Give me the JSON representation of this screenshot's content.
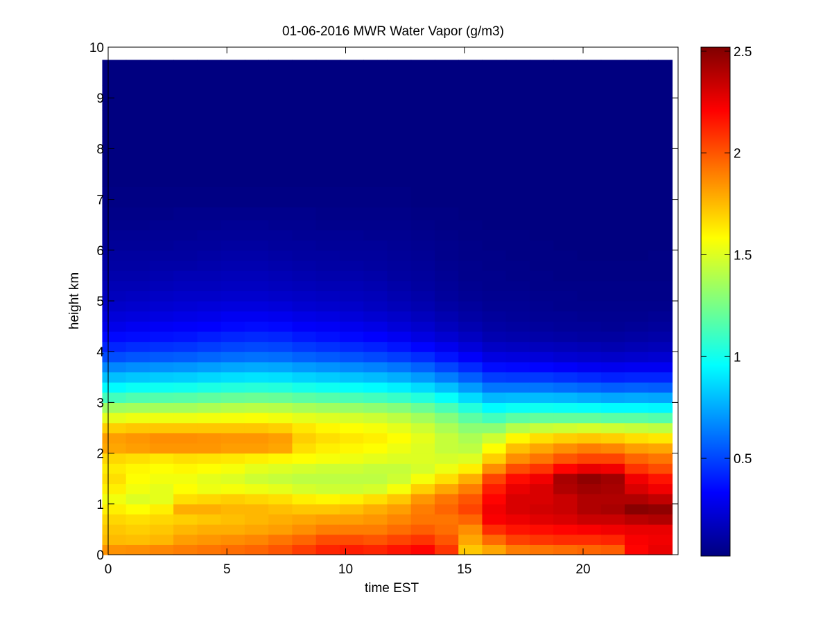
{
  "chart_data": {
    "type": "heatmap",
    "title": "01-06-2016 MWR Water Vapor (g/m3)",
    "xlabel": "time EST",
    "ylabel": "height km",
    "xlim": [
      0,
      24
    ],
    "ylim": [
      0,
      10
    ],
    "xticks": [
      0,
      5,
      10,
      15,
      20
    ],
    "yticks": [
      0,
      1,
      2,
      3,
      4,
      5,
      6,
      7,
      8,
      9,
      10
    ],
    "colorbar": {
      "colormap": "jet",
      "clim": [
        0.02,
        2.52
      ],
      "ticks": [
        0.5,
        1,
        1.5,
        2,
        2.5
      ]
    },
    "x": [
      0.25,
      1.25,
      2.25,
      3.25,
      4.25,
      5.25,
      6.25,
      7.25,
      8.25,
      9.25,
      10.25,
      11.25,
      12.25,
      13.25,
      14.25,
      15.25,
      16.25,
      17.25,
      18.25,
      19.25,
      20.25,
      21.25,
      22.25,
      23.25
    ],
    "y": [
      0.1,
      0.3,
      0.5,
      0.7,
      0.9,
      1.1,
      1.3,
      1.5,
      1.7,
      1.9,
      2.1,
      2.3,
      2.5,
      2.7,
      2.9,
      3.1,
      3.3,
      3.5,
      3.7,
      3.9,
      4.1,
      4.3,
      4.5,
      4.7,
      4.9,
      5.1,
      5.3,
      5.5,
      5.7,
      5.9,
      6.1,
      6.3,
      6.5,
      6.7,
      7.0,
      7.5,
      8.0,
      8.5,
      9.0,
      9.5
    ],
    "z_columns": [
      [
        1.85,
        1.75,
        1.72,
        1.68,
        1.62,
        1.55,
        1.62,
        1.66,
        1.63,
        1.68,
        1.8,
        1.82,
        1.7,
        1.52,
        1.35,
        1.12,
        0.95,
        0.8,
        0.66,
        0.52,
        0.42,
        0.35,
        0.28,
        0.24,
        0.2,
        0.17,
        0.15,
        0.13,
        0.11,
        0.1,
        0.08,
        0.07,
        0.05,
        0.04,
        0.03,
        0.02,
        0.02,
        0.02,
        0.02,
        0.02
      ],
      [
        1.86,
        1.74,
        1.7,
        1.66,
        1.58,
        1.5,
        1.55,
        1.58,
        1.6,
        1.66,
        1.82,
        1.84,
        1.72,
        1.54,
        1.36,
        1.15,
        0.98,
        0.82,
        0.68,
        0.54,
        0.44,
        0.36,
        0.3,
        0.25,
        0.21,
        0.18,
        0.15,
        0.13,
        0.11,
        0.1,
        0.08,
        0.07,
        0.05,
        0.04,
        0.03,
        0.02,
        0.02,
        0.02,
        0.02,
        0.02
      ],
      [
        1.88,
        1.76,
        1.72,
        1.68,
        1.62,
        1.52,
        1.52,
        1.55,
        1.58,
        1.64,
        1.84,
        1.86,
        1.72,
        1.54,
        1.36,
        1.16,
        0.99,
        0.83,
        0.69,
        0.55,
        0.45,
        0.37,
        0.31,
        0.26,
        0.22,
        0.19,
        0.16,
        0.14,
        0.12,
        0.1,
        0.08,
        0.07,
        0.06,
        0.04,
        0.03,
        0.02,
        0.02,
        0.02,
        0.02,
        0.02
      ],
      [
        1.9,
        1.82,
        1.76,
        1.7,
        1.78,
        1.66,
        1.58,
        1.55,
        1.6,
        1.66,
        1.84,
        1.86,
        1.72,
        1.54,
        1.36,
        1.17,
        1.0,
        0.84,
        0.7,
        0.56,
        0.46,
        0.38,
        0.32,
        0.27,
        0.23,
        0.2,
        0.17,
        0.15,
        0.12,
        0.1,
        0.09,
        0.07,
        0.06,
        0.05,
        0.03,
        0.02,
        0.02,
        0.02,
        0.02,
        0.02
      ],
      [
        1.92,
        1.84,
        1.78,
        1.72,
        1.78,
        1.68,
        1.54,
        1.52,
        1.58,
        1.65,
        1.84,
        1.85,
        1.72,
        1.55,
        1.38,
        1.19,
        1.02,
        0.86,
        0.72,
        0.58,
        0.48,
        0.4,
        0.33,
        0.28,
        0.24,
        0.2,
        0.17,
        0.15,
        0.13,
        0.11,
        0.09,
        0.08,
        0.06,
        0.05,
        0.03,
        0.02,
        0.02,
        0.02,
        0.02,
        0.02
      ],
      [
        1.94,
        1.86,
        1.78,
        1.74,
        1.76,
        1.7,
        1.56,
        1.5,
        1.56,
        1.64,
        1.82,
        1.84,
        1.72,
        1.56,
        1.4,
        1.21,
        1.04,
        0.88,
        0.74,
        0.6,
        0.5,
        0.42,
        0.35,
        0.3,
        0.25,
        0.21,
        0.18,
        0.16,
        0.14,
        0.12,
        0.1,
        0.08,
        0.07,
        0.05,
        0.03,
        0.02,
        0.02,
        0.02,
        0.02,
        0.02
      ],
      [
        1.96,
        1.88,
        1.8,
        1.76,
        1.76,
        1.68,
        1.54,
        1.46,
        1.52,
        1.62,
        1.82,
        1.84,
        1.72,
        1.57,
        1.41,
        1.22,
        1.05,
        0.89,
        0.75,
        0.61,
        0.51,
        0.43,
        0.36,
        0.3,
        0.25,
        0.21,
        0.18,
        0.16,
        0.14,
        0.12,
        0.1,
        0.08,
        0.07,
        0.05,
        0.03,
        0.02,
        0.02,
        0.02,
        0.02,
        0.02
      ],
      [
        2.0,
        1.92,
        1.82,
        1.78,
        1.74,
        1.66,
        1.52,
        1.44,
        1.5,
        1.6,
        1.8,
        1.82,
        1.7,
        1.55,
        1.4,
        1.21,
        1.04,
        0.88,
        0.74,
        0.6,
        0.5,
        0.42,
        0.35,
        0.29,
        0.24,
        0.2,
        0.17,
        0.15,
        0.13,
        0.11,
        0.09,
        0.08,
        0.06,
        0.05,
        0.03,
        0.02,
        0.02,
        0.02,
        0.02,
        0.02
      ],
      [
        2.06,
        1.96,
        1.86,
        1.8,
        1.72,
        1.62,
        1.48,
        1.42,
        1.48,
        1.58,
        1.66,
        1.7,
        1.64,
        1.52,
        1.37,
        1.18,
        1.01,
        0.85,
        0.71,
        0.57,
        0.47,
        0.39,
        0.32,
        0.27,
        0.22,
        0.19,
        0.16,
        0.14,
        0.12,
        0.1,
        0.09,
        0.07,
        0.06,
        0.05,
        0.03,
        0.02,
        0.02,
        0.02,
        0.02,
        0.02
      ],
      [
        2.12,
        2.02,
        1.9,
        1.82,
        1.72,
        1.6,
        1.46,
        1.42,
        1.46,
        1.56,
        1.62,
        1.66,
        1.6,
        1.5,
        1.35,
        1.16,
        0.99,
        0.83,
        0.69,
        0.55,
        0.45,
        0.37,
        0.31,
        0.26,
        0.21,
        0.18,
        0.15,
        0.13,
        0.11,
        0.1,
        0.08,
        0.07,
        0.05,
        0.04,
        0.03,
        0.02,
        0.02,
        0.02,
        0.02,
        0.02
      ],
      [
        2.14,
        2.02,
        1.9,
        1.82,
        1.74,
        1.62,
        1.46,
        1.42,
        1.46,
        1.54,
        1.6,
        1.64,
        1.58,
        1.48,
        1.33,
        1.14,
        0.97,
        0.81,
        0.67,
        0.53,
        0.43,
        0.35,
        0.29,
        0.24,
        0.2,
        0.17,
        0.15,
        0.13,
        0.11,
        0.09,
        0.08,
        0.07,
        0.05,
        0.04,
        0.03,
        0.02,
        0.02,
        0.02,
        0.02,
        0.02
      ],
      [
        2.12,
        2.0,
        1.9,
        1.84,
        1.78,
        1.66,
        1.48,
        1.42,
        1.44,
        1.52,
        1.58,
        1.62,
        1.56,
        1.46,
        1.31,
        1.12,
        0.95,
        0.79,
        0.65,
        0.51,
        0.41,
        0.33,
        0.27,
        0.22,
        0.18,
        0.16,
        0.14,
        0.12,
        0.1,
        0.09,
        0.08,
        0.06,
        0.05,
        0.04,
        0.03,
        0.02,
        0.02,
        0.02,
        0.02,
        0.02
      ],
      [
        2.16,
        2.04,
        1.94,
        1.88,
        1.82,
        1.72,
        1.56,
        1.46,
        1.44,
        1.5,
        1.54,
        1.58,
        1.52,
        1.42,
        1.28,
        1.09,
        0.92,
        0.76,
        0.62,
        0.48,
        0.38,
        0.3,
        0.24,
        0.2,
        0.16,
        0.14,
        0.12,
        0.1,
        0.09,
        0.08,
        0.07,
        0.06,
        0.05,
        0.04,
        0.03,
        0.02,
        0.02,
        0.02,
        0.02,
        0.02
      ],
      [
        2.2,
        2.08,
        1.98,
        1.92,
        1.9,
        1.84,
        1.7,
        1.56,
        1.48,
        1.5,
        1.5,
        1.52,
        1.46,
        1.36,
        1.22,
        1.04,
        0.87,
        0.71,
        0.57,
        0.44,
        0.34,
        0.26,
        0.21,
        0.17,
        0.14,
        0.12,
        0.1,
        0.09,
        0.08,
        0.07,
        0.06,
        0.05,
        0.04,
        0.03,
        0.02,
        0.02,
        0.02,
        0.02,
        0.02,
        0.02
      ],
      [
        2.08,
        2.0,
        1.94,
        1.92,
        1.96,
        1.92,
        1.8,
        1.66,
        1.54,
        1.48,
        1.44,
        1.44,
        1.38,
        1.28,
        1.14,
        0.97,
        0.8,
        0.64,
        0.5,
        0.38,
        0.29,
        0.22,
        0.17,
        0.14,
        0.11,
        0.09,
        0.08,
        0.07,
        0.06,
        0.05,
        0.05,
        0.04,
        0.03,
        0.03,
        0.02,
        0.02,
        0.02,
        0.02,
        0.02,
        0.02
      ],
      [
        1.72,
        1.8,
        1.86,
        1.96,
        2.04,
        2.0,
        1.9,
        1.78,
        1.62,
        1.5,
        1.42,
        1.38,
        1.3,
        1.18,
        1.04,
        0.87,
        0.71,
        0.56,
        0.43,
        0.32,
        0.24,
        0.18,
        0.14,
        0.11,
        0.09,
        0.07,
        0.06,
        0.05,
        0.05,
        0.04,
        0.04,
        0.03,
        0.03,
        0.02,
        0.02,
        0.02,
        0.02,
        0.02,
        0.02,
        0.02
      ],
      [
        1.8,
        1.95,
        2.1,
        2.22,
        2.24,
        2.2,
        2.14,
        2.04,
        1.86,
        1.7,
        1.58,
        1.46,
        1.3,
        1.12,
        0.95,
        0.78,
        0.62,
        0.48,
        0.36,
        0.26,
        0.19,
        0.14,
        0.11,
        0.09,
        0.07,
        0.06,
        0.05,
        0.05,
        0.04,
        0.04,
        0.03,
        0.03,
        0.02,
        0.02,
        0.02,
        0.02,
        0.02,
        0.02,
        0.02,
        0.02
      ],
      [
        1.9,
        2.05,
        2.16,
        2.25,
        2.3,
        2.3,
        2.26,
        2.18,
        2.02,
        1.86,
        1.74,
        1.6,
        1.4,
        1.18,
        0.98,
        0.79,
        0.62,
        0.47,
        0.35,
        0.25,
        0.18,
        0.13,
        0.1,
        0.08,
        0.07,
        0.06,
        0.05,
        0.04,
        0.04,
        0.03,
        0.03,
        0.03,
        0.02,
        0.02,
        0.02,
        0.02,
        0.02,
        0.02,
        0.02,
        0.02
      ],
      [
        1.92,
        2.08,
        2.18,
        2.28,
        2.32,
        2.3,
        2.3,
        2.24,
        2.08,
        1.92,
        1.8,
        1.66,
        1.44,
        1.2,
        0.99,
        0.79,
        0.62,
        0.47,
        0.34,
        0.24,
        0.17,
        0.12,
        0.09,
        0.07,
        0.06,
        0.05,
        0.04,
        0.04,
        0.03,
        0.03,
        0.03,
        0.02,
        0.02,
        0.02,
        0.02,
        0.02,
        0.02,
        0.02,
        0.02,
        0.02
      ],
      [
        1.94,
        2.1,
        2.2,
        2.3,
        2.34,
        2.34,
        2.4,
        2.42,
        2.2,
        2.0,
        1.86,
        1.7,
        1.46,
        1.2,
        0.98,
        0.78,
        0.6,
        0.45,
        0.32,
        0.22,
        0.16,
        0.11,
        0.08,
        0.07,
        0.05,
        0.05,
        0.04,
        0.03,
        0.03,
        0.03,
        0.02,
        0.02,
        0.02,
        0.02,
        0.02,
        0.02,
        0.02,
        0.02,
        0.02,
        0.02
      ],
      [
        1.96,
        2.1,
        2.22,
        2.34,
        2.4,
        2.4,
        2.44,
        2.48,
        2.26,
        2.04,
        1.9,
        1.72,
        1.48,
        1.2,
        0.97,
        0.76,
        0.58,
        0.43,
        0.3,
        0.21,
        0.15,
        0.1,
        0.08,
        0.06,
        0.05,
        0.04,
        0.04,
        0.03,
        0.03,
        0.02,
        0.02,
        0.02,
        0.02,
        0.02,
        0.02,
        0.02,
        0.02,
        0.02,
        0.02,
        0.02
      ],
      [
        1.98,
        2.12,
        2.24,
        2.34,
        2.42,
        2.4,
        2.42,
        2.44,
        2.24,
        2.04,
        1.88,
        1.7,
        1.46,
        1.18,
        0.95,
        0.74,
        0.56,
        0.41,
        0.29,
        0.2,
        0.14,
        0.1,
        0.07,
        0.06,
        0.05,
        0.04,
        0.04,
        0.03,
        0.03,
        0.02,
        0.02,
        0.02,
        0.02,
        0.02,
        0.02,
        0.02,
        0.02,
        0.02,
        0.02,
        0.02
      ],
      [
        2.2,
        2.22,
        2.26,
        2.38,
        2.5,
        2.4,
        2.3,
        2.24,
        2.08,
        1.96,
        1.82,
        1.66,
        1.44,
        1.18,
        0.95,
        0.75,
        0.57,
        0.42,
        0.3,
        0.21,
        0.15,
        0.11,
        0.08,
        0.06,
        0.05,
        0.04,
        0.04,
        0.03,
        0.03,
        0.02,
        0.02,
        0.02,
        0.02,
        0.02,
        0.02,
        0.02,
        0.02,
        0.02,
        0.02,
        0.02
      ],
      [
        2.26,
        2.24,
        2.26,
        2.4,
        2.48,
        2.36,
        2.24,
        2.16,
        2.02,
        1.92,
        1.8,
        1.64,
        1.42,
        1.16,
        0.94,
        0.74,
        0.56,
        0.42,
        0.3,
        0.22,
        0.16,
        0.12,
        0.09,
        0.07,
        0.05,
        0.04,
        0.04,
        0.03,
        0.03,
        0.03,
        0.02,
        0.02,
        0.02,
        0.02,
        0.02,
        0.02,
        0.02,
        0.02,
        0.02,
        0.02
      ]
    ]
  }
}
